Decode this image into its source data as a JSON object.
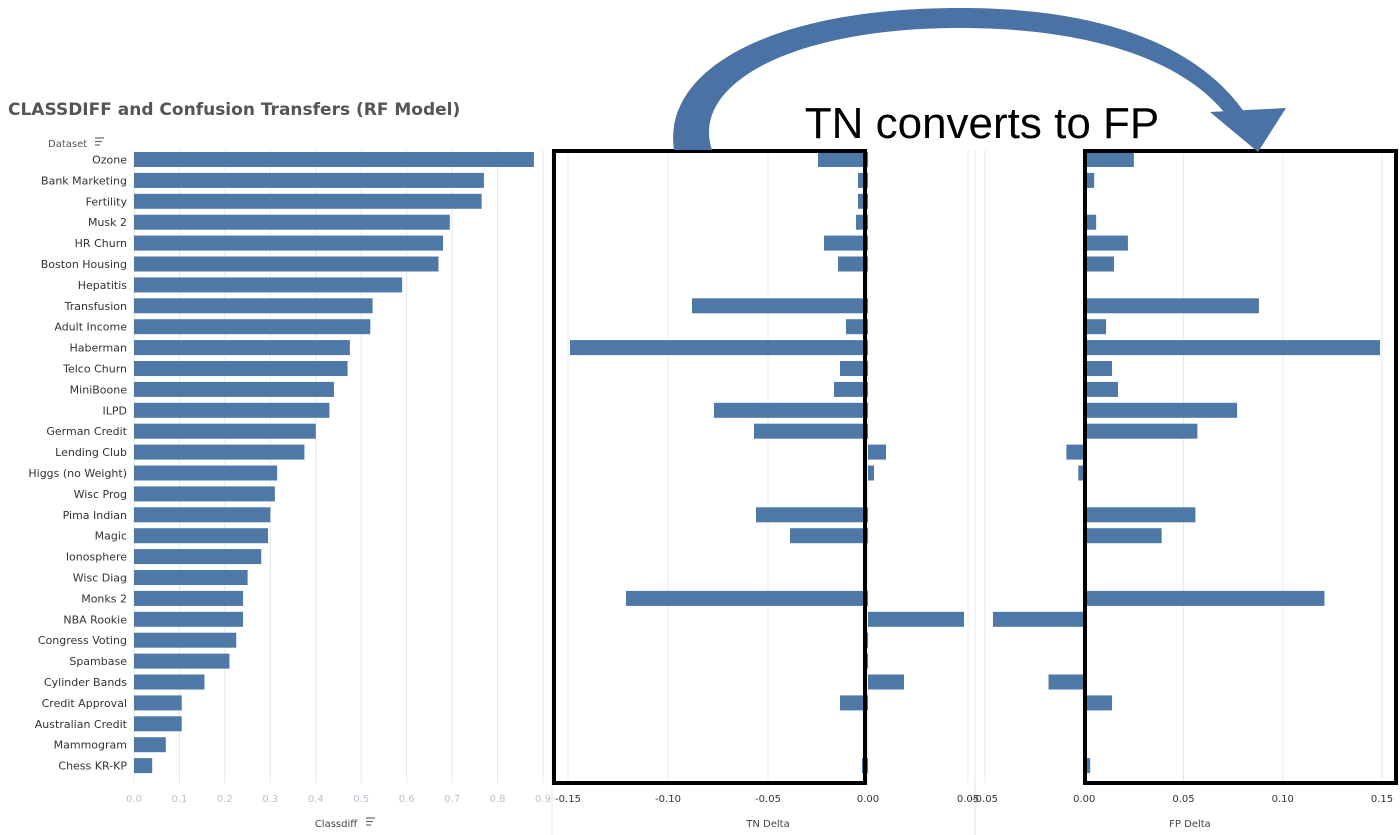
{
  "annotation": "TN converts to FP",
  "header": {
    "title": "CLASSDIFF and Confusion Transfers (RF Model)",
    "row_header": "Dataset"
  },
  "colors": {
    "bar": "#4e79a7",
    "arrow": "#4a72a4",
    "grid": "#e8e8e8",
    "box": "#000000"
  },
  "chart_data": {
    "type": "bar",
    "orientation": "horizontal",
    "title": "CLASSDIFF and Confusion Transfers (RF Model)",
    "categories": [
      "Ozone",
      "Bank Marketing",
      "Fertility",
      "Musk 2",
      "HR Churn",
      "Boston Housing",
      "Hepatitis",
      "Transfusion",
      "Adult Income",
      "Haberman",
      "Telco Churn",
      "MiniBoone",
      "ILPD",
      "German Credit",
      "Lending Club",
      "Higgs (no Weight)",
      "Wisc Prog",
      "Pima Indian",
      "Magic",
      "Ionosphere",
      "Wisc Diag",
      "Monks 2",
      "NBA Rookie",
      "Congress Voting",
      "Spambase",
      "Cylinder Bands",
      "Credit Approval",
      "Australian Credit",
      "Mammogram",
      "Chess KR-KP"
    ],
    "panels": [
      {
        "name": "Classdiff",
        "xlabel": "Classdiff",
        "xlim": [
          0,
          0.9
        ],
        "ticks": [
          0.0,
          0.1,
          0.2,
          0.3,
          0.4,
          0.5,
          0.6,
          0.7,
          0.8,
          0.9
        ],
        "tick_labels": [
          "0.0",
          "0.1",
          "0.2",
          "0.3",
          "0.4",
          "0.5",
          "0.6",
          "0.7",
          "0.8",
          "0.9"
        ],
        "values": [
          0.88,
          0.77,
          0.765,
          0.695,
          0.68,
          0.67,
          0.59,
          0.525,
          0.52,
          0.475,
          0.47,
          0.44,
          0.43,
          0.4,
          0.375,
          0.315,
          0.31,
          0.3,
          0.295,
          0.28,
          0.25,
          0.24,
          0.24,
          0.225,
          0.21,
          0.155,
          0.105,
          0.105,
          0.07,
          0.04
        ]
      },
      {
        "name": "TN Delta",
        "xlabel": "TN Delta",
        "xlim": [
          -0.15,
          0.05
        ],
        "ticks": [
          -0.15,
          -0.1,
          -0.05,
          0.0,
          0.05
        ],
        "tick_labels": [
          "-0.15",
          "-0.10",
          "-0.05",
          "0.00",
          "0.05"
        ],
        "values": [
          -0.025,
          -0.005,
          -0.005,
          -0.006,
          -0.022,
          -0.015,
          0,
          -0.088,
          -0.011,
          -0.149,
          -0.014,
          -0.017,
          -0.077,
          -0.057,
          0.009,
          0.003,
          0,
          -0.056,
          -0.039,
          0,
          0,
          -0.121,
          0.048,
          -0.001,
          -0.002,
          0.018,
          -0.014,
          0,
          0,
          -0.003
        ]
      },
      {
        "name": "FP Delta",
        "xlabel": "FP Delta",
        "xlim": [
          -0.05,
          0.15
        ],
        "ticks": [
          -0.05,
          0.0,
          0.05,
          0.1,
          0.15
        ],
        "tick_labels": [
          "-0.05",
          "0.00",
          "0.05",
          "0.10",
          "0.15"
        ],
        "values": [
          0.025,
          0.005,
          0,
          0.006,
          0.022,
          0.015,
          0,
          0.088,
          0.011,
          0.149,
          0.014,
          0.017,
          0.077,
          0.057,
          -0.009,
          -0.003,
          0,
          0.056,
          0.039,
          0,
          0,
          0.121,
          -0.046,
          0,
          0.001,
          -0.018,
          0.014,
          0,
          0,
          0.003
        ]
      }
    ]
  }
}
